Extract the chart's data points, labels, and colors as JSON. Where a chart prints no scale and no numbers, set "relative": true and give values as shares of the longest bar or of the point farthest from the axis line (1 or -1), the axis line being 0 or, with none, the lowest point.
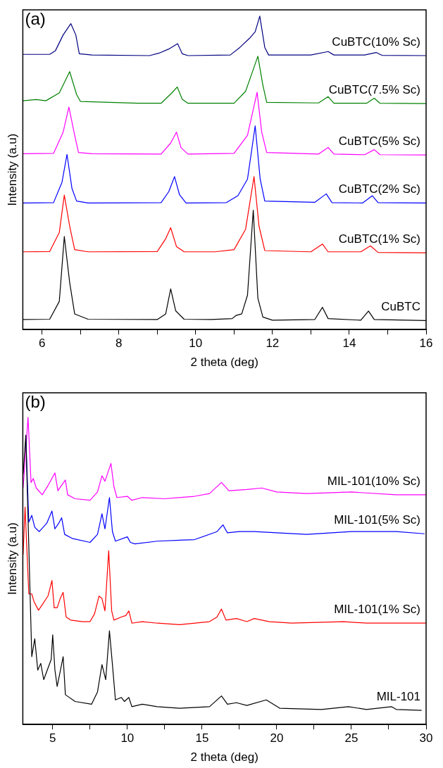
{
  "chart_data": [
    {
      "type": "line",
      "relative": true,
      "annotations": [
        "(a)"
      ],
      "xlabel": "2 theta (deg)",
      "ylabel": "Intensity (a.u)",
      "marker": "none",
      "tick_labels": "x",
      "xlim": [
        5.5,
        16
      ],
      "xticks": [
        6,
        {
          "value": 7,
          "label": null
        },
        8,
        {
          "value": 9,
          "label": null
        },
        10,
        {
          "value": 11,
          "label": null
        },
        12,
        {
          "value": 13,
          "label": null
        },
        14,
        {
          "value": 15,
          "label": null
        },
        16
      ],
      "series": [
        {
          "name": "CuBTC",
          "color": "#000000",
          "x": [
            5.5,
            6.2,
            6.45,
            6.58,
            6.72,
            6.85,
            7.2,
            9.0,
            9.22,
            9.35,
            9.48,
            9.7,
            10.4,
            10.95,
            11.05,
            11.2,
            11.35,
            11.5,
            11.62,
            11.75,
            12.0,
            13.1,
            13.3,
            13.45,
            14.3,
            14.5,
            14.65,
            16
          ],
          "values": [
            0.032,
            0.033,
            0.09,
            0.297,
            0.15,
            0.05,
            0.033,
            0.032,
            0.05,
            0.13,
            0.06,
            0.033,
            0.032,
            0.035,
            0.045,
            0.05,
            0.11,
            0.381,
            0.1,
            0.04,
            0.03,
            0.032,
            0.071,
            0.035,
            0.03,
            0.059,
            0.032,
            0.029
          ]
        },
        {
          "name": "CuBTC(1% Sc)",
          "color": "#ff0000",
          "x": [
            5.5,
            6.2,
            6.45,
            6.58,
            6.72,
            6.85,
            7.2,
            9.0,
            9.22,
            9.35,
            9.5,
            9.7,
            10.5,
            11.0,
            11.3,
            11.52,
            11.65,
            11.8,
            13.0,
            13.3,
            13.45,
            14.3,
            14.55,
            14.75,
            16
          ],
          "values": [
            0.248,
            0.249,
            0.31,
            0.429,
            0.33,
            0.255,
            0.248,
            0.249,
            0.29,
            0.325,
            0.265,
            0.248,
            0.248,
            0.255,
            0.32,
            0.488,
            0.33,
            0.252,
            0.248,
            0.273,
            0.248,
            0.248,
            0.267,
            0.246,
            0.245
          ]
        },
        {
          "name": "CuBTC(2% Sc)",
          "color": "#0000ff",
          "x": [
            5.5,
            6.3,
            6.52,
            6.65,
            6.78,
            6.9,
            7.2,
            9.1,
            9.3,
            9.45,
            9.58,
            9.75,
            10.8,
            11.1,
            11.35,
            11.55,
            11.68,
            11.8,
            13.1,
            13.4,
            13.55,
            14.35,
            14.6,
            14.75,
            16
          ],
          "values": [
            0.404,
            0.405,
            0.47,
            0.559,
            0.45,
            0.41,
            0.404,
            0.405,
            0.44,
            0.488,
            0.43,
            0.404,
            0.405,
            0.427,
            0.48,
            0.65,
            0.48,
            0.41,
            0.406,
            0.433,
            0.405,
            0.404,
            0.427,
            0.405,
            0.404
          ]
        },
        {
          "name": "CuBTC(5% Sc)",
          "color": "#ff00ff",
          "x": [
            5.5,
            6.3,
            6.55,
            6.7,
            6.85,
            6.95,
            7.3,
            9.1,
            9.35,
            9.5,
            9.62,
            9.8,
            11.0,
            11.35,
            11.6,
            11.72,
            11.85,
            13.2,
            13.45,
            13.6,
            14.4,
            14.65,
            14.8,
            16
          ],
          "values": [
            0.561,
            0.562,
            0.63,
            0.71,
            0.62,
            0.565,
            0.561,
            0.56,
            0.595,
            0.63,
            0.58,
            0.56,
            0.562,
            0.62,
            0.757,
            0.63,
            0.565,
            0.56,
            0.581,
            0.56,
            0.558,
            0.574,
            0.558,
            0.557
          ]
        },
        {
          "name": "CuBTC(7.5% Sc)",
          "color": "#008000",
          "x": [
            5.5,
            5.85,
            6.1,
            6.45,
            6.72,
            6.9,
            7.0,
            8.5,
            9.1,
            9.38,
            9.52,
            9.65,
            9.8,
            11.0,
            11.3,
            11.5,
            11.62,
            11.75,
            11.85,
            13.2,
            13.45,
            13.6,
            14.45,
            14.65,
            14.8,
            16
          ],
          "values": [
            0.73,
            0.734,
            0.73,
            0.755,
            0.823,
            0.75,
            0.728,
            0.722,
            0.722,
            0.755,
            0.774,
            0.735,
            0.722,
            0.722,
            0.76,
            0.83,
            0.872,
            0.78,
            0.725,
            0.723,
            0.743,
            0.722,
            0.722,
            0.738,
            0.722,
            0.721
          ]
        },
        {
          "name": "CuBTC(10% Sc)",
          "color": "#000080",
          "x": [
            5.5,
            6.2,
            6.35,
            6.55,
            6.75,
            6.88,
            6.97,
            7.3,
            8.8,
            9.05,
            9.3,
            9.53,
            9.65,
            9.8,
            10.9,
            11.15,
            11.4,
            11.55,
            11.67,
            11.8,
            11.9,
            13.0,
            13.45,
            13.6,
            14.4,
            14.7,
            14.85,
            16
          ],
          "values": [
            0.878,
            0.878,
            0.89,
            0.94,
            0.976,
            0.94,
            0.88,
            0.876,
            0.874,
            0.882,
            0.895,
            0.912,
            0.88,
            0.874,
            0.876,
            0.9,
            0.929,
            0.95,
            1.0,
            0.9,
            0.876,
            0.876,
            0.887,
            0.876,
            0.876,
            0.884,
            0.875,
            0.874
          ]
        }
      ]
    },
    {
      "type": "line",
      "relative": true,
      "annotations": [
        "(b)"
      ],
      "xlabel": "2 theta (deg)",
      "ylabel": "Intensity (a.u)",
      "marker": "none",
      "tick_labels": "x",
      "xlim": [
        3,
        30
      ],
      "xticks": [
        5,
        {
          "value": 7.5,
          "label": null
        },
        10,
        {
          "value": 12.5,
          "label": null
        },
        15,
        {
          "value": 17.5,
          "label": null
        },
        20,
        {
          "value": 22.5,
          "label": null
        },
        25,
        {
          "value": 27.5,
          "label": null
        },
        30
      ],
      "series": [
        {
          "name": "MIL-101",
          "color": "#000000",
          "x": [
            3.02,
            3.2,
            3.6,
            3.8,
            4.0,
            4.2,
            4.4,
            4.9,
            5.0,
            5.15,
            5.3,
            5.7,
            5.85,
            6.5,
            7.6,
            8.0,
            8.3,
            8.55,
            8.8,
            9.0,
            9.2,
            9.6,
            9.8,
            10.1,
            10.3,
            11.0,
            12,
            13.5,
            15.5,
            16.3,
            16.7,
            17.3,
            18,
            19.3,
            20.2,
            23,
            24.8,
            26,
            27.7,
            28,
            29.7
          ],
          "values": [
            0.814,
            0.942,
            0.221,
            0.279,
            0.177,
            0.199,
            0.146,
            0.212,
            0.292,
            0.177,
            0.124,
            0.221,
            0.097,
            0.075,
            0.066,
            0.106,
            0.195,
            0.146,
            0.305,
            0.195,
            0.08,
            0.088,
            0.075,
            0.088,
            0.058,
            0.066,
            0.058,
            0.053,
            0.058,
            0.093,
            0.066,
            0.071,
            0.062,
            0.08,
            0.053,
            0.049,
            0.058,
            0.049,
            0.058,
            0.049,
            0.046
          ]
        },
        {
          "name": "MIL-101(1% Sc)",
          "color": "#ff0000",
          "x": [
            3.02,
            3.15,
            3.4,
            3.6,
            3.75,
            4.05,
            4.3,
            4.7,
            4.95,
            5.1,
            5.3,
            5.5,
            5.7,
            5.9,
            6.2,
            7.0,
            7.5,
            7.8,
            8.1,
            8.3,
            8.5,
            8.75,
            8.95,
            9.1,
            9.6,
            9.9,
            10.1,
            10.3,
            11.0,
            12,
            13.5,
            15.5,
            16.0,
            16.3,
            16.6,
            17.3,
            18.0,
            18.5,
            19.5,
            21,
            24.5,
            26,
            28,
            30
          ],
          "values": [
            0.553,
            0.708,
            0.425,
            0.425,
            0.4,
            0.372,
            0.39,
            0.42,
            0.469,
            0.38,
            0.38,
            0.41,
            0.43,
            0.35,
            0.34,
            0.335,
            0.335,
            0.36,
            0.418,
            0.41,
            0.37,
            0.566,
            0.37,
            0.34,
            0.35,
            0.355,
            0.37,
            0.33,
            0.335,
            0.33,
            0.325,
            0.335,
            0.35,
            0.376,
            0.34,
            0.345,
            0.335,
            0.345,
            0.335,
            0.33,
            0.335,
            0.33,
            0.33,
            0.33
          ]
        },
        {
          "name": "MIL-101(5% Sc)",
          "color": "#0000ff",
          "x": [
            3.2,
            3.4,
            3.6,
            3.8,
            4.1,
            4.6,
            4.95,
            5.15,
            5.4,
            5.6,
            5.8,
            6.3,
            7.5,
            8.0,
            8.3,
            8.5,
            8.8,
            9.0,
            9.2,
            10.0,
            10.2,
            10.5,
            12,
            14.5,
            16.0,
            16.4,
            16.7,
            17.5,
            18.5,
            20,
            22,
            25,
            28,
            29.9
          ],
          "values": [
            0.942,
            0.659,
            0.681,
            0.642,
            0.628,
            0.655,
            0.695,
            0.637,
            0.655,
            0.673,
            0.619,
            0.606,
            0.593,
            0.619,
            0.686,
            0.637,
            0.739,
            0.628,
            0.597,
            0.611,
            0.593,
            0.588,
            0.597,
            0.602,
            0.628,
            0.65,
            0.624,
            0.628,
            0.628,
            0.624,
            0.619,
            0.628,
            0.628,
            0.621
          ]
        },
        {
          "name": "MIL-101(10% Sc)",
          "color": "#ff00ff",
          "x": [
            3.02,
            3.35,
            3.55,
            3.7,
            3.9,
            4.3,
            4.7,
            5.15,
            5.35,
            5.6,
            5.85,
            6.0,
            6.5,
            7.5,
            8.0,
            8.3,
            8.5,
            8.9,
            9.1,
            9.3,
            10.0,
            10.3,
            11,
            12.5,
            14.5,
            15.5,
            16.3,
            16.8,
            18,
            19,
            20,
            22,
            25,
            28,
            30
          ],
          "values": [
            0.77,
            1.0,
            0.788,
            0.801,
            0.77,
            0.748,
            0.779,
            0.819,
            0.761,
            0.779,
            0.796,
            0.748,
            0.735,
            0.73,
            0.757,
            0.81,
            0.792,
            0.85,
            0.774,
            0.739,
            0.743,
            0.73,
            0.739,
            0.735,
            0.743,
            0.752,
            0.788,
            0.761,
            0.765,
            0.77,
            0.757,
            0.752,
            0.757,
            0.748,
            0.748
          ]
        }
      ]
    }
  ]
}
